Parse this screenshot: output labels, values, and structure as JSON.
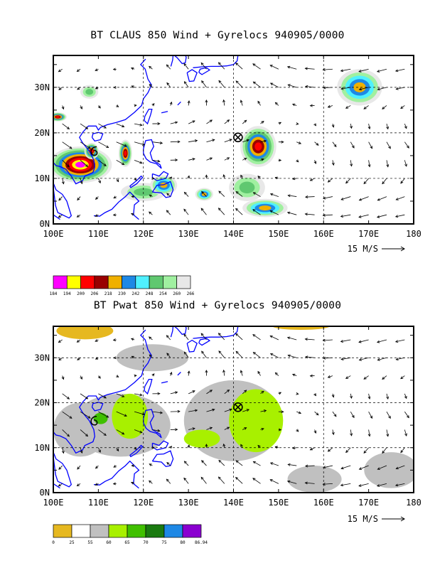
{
  "panels": [
    {
      "title": "BT CLAUS 850 Wind + Gyrelocs 940905/0000",
      "lat_labels": [
        "30N",
        "20N",
        "10N",
        "0N"
      ],
      "lon_labels": [
        "100E",
        "110E",
        "120E",
        "130E",
        "140E",
        "150E",
        "160E",
        "170E",
        "180"
      ],
      "ref_vector_label": "15 M/S",
      "colorbar": {
        "labels": [
          "184",
          "194",
          "200",
          "206",
          "218",
          "230",
          "242",
          "248",
          "254",
          "260",
          "266"
        ],
        "colors": [
          "#ff00ff",
          "#ffff00",
          "#ff0000",
          "#990000",
          "#f0b000",
          "#1e88e5",
          "#4ff0ff",
          "#60c870",
          "#a0f0a0",
          "#e8e8e8"
        ]
      },
      "gyre_location": {
        "lon": 141,
        "lat": 19
      },
      "gyre_location_2": {
        "lon": 109,
        "lat": 16
      }
    },
    {
      "title": "BT Pwat 850 Wind + Gyrelocs 940905/0000",
      "lat_labels": [
        "30N",
        "20N",
        "10N",
        "0N"
      ],
      "lon_labels": [
        "100E",
        "110E",
        "120E",
        "130E",
        "140E",
        "150E",
        "160E",
        "170E",
        "180"
      ],
      "ref_vector_label": "15 M/S",
      "colorbar": {
        "labels": [
          "0",
          "25",
          "55",
          "60",
          "65",
          "70",
          "75",
          "80",
          "86.94"
        ],
        "colors": [
          "#e6b820",
          "#ffffff",
          "#c0c0c0",
          "#a8f000",
          "#40c000",
          "#1a7a10",
          "#1e88e5",
          "#8a00d0"
        ]
      },
      "gyre_location": {
        "lon": 141,
        "lat": 19
      },
      "gyre_location_2": {
        "lon": 109,
        "lat": 16
      }
    }
  ],
  "colors": {
    "coastline": "#0000ff",
    "frame": "#000000"
  }
}
